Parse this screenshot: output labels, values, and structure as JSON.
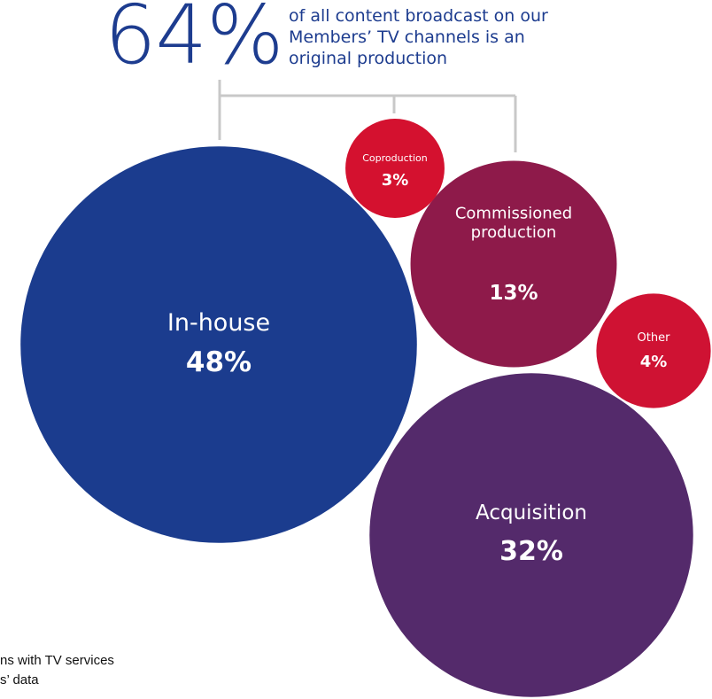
{
  "headline": {
    "value": "64%",
    "lines": [
      "of all content broadcast on our",
      "Members’ TV channels is an",
      "original production"
    ]
  },
  "colors": {
    "in_house": "#1b3c8e",
    "acquisition": "#542a6b",
    "commissioned": "#8e1a4a",
    "coproduction": "#d4112f",
    "other": "#cf1233",
    "bracket": "#c8c8c8",
    "headline": "#1d3c8f"
  },
  "chart_data": {
    "type": "bubble",
    "unit": "%",
    "title": "",
    "categories": [
      "In-house",
      "Acquisition",
      "Commissioned production",
      "Coproduction",
      "Other"
    ],
    "values": [
      48,
      32,
      13,
      3,
      4
    ],
    "series": [
      {
        "name": "In-house",
        "label_lines": [
          "In-house"
        ],
        "value": 48,
        "value_label": "48%",
        "color_key": "in_house",
        "original": true
      },
      {
        "name": "Acquisition",
        "label_lines": [
          "Acquisition"
        ],
        "value": 32,
        "value_label": "32%",
        "color_key": "acquisition",
        "original": false
      },
      {
        "name": "Commissioned production",
        "label_lines": [
          "Commissioned",
          "production"
        ],
        "value": 13,
        "value_label": "13%",
        "color_key": "commissioned",
        "original": true
      },
      {
        "name": "Coproduction",
        "label_lines": [
          "Coproduction"
        ],
        "value": 3,
        "value_label": "3%",
        "color_key": "coproduction",
        "original": true
      },
      {
        "name": "Other",
        "label_lines": [
          "Other"
        ],
        "value": 4,
        "value_label": "4%",
        "color_key": "other",
        "original": false
      }
    ],
    "grouping": {
      "label": "64%",
      "members": [
        "In-house",
        "Commissioned production",
        "Coproduction"
      ]
    }
  },
  "footnotes": [
    "ns with TV services",
    "s’ data"
  ]
}
